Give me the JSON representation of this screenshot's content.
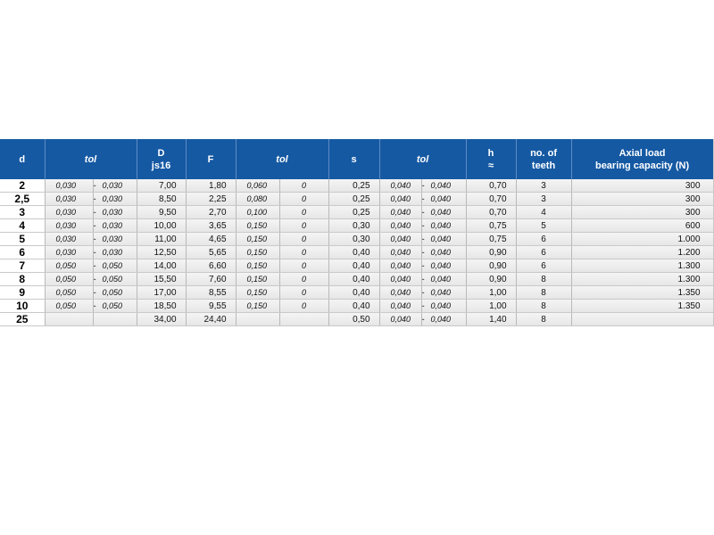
{
  "headers": {
    "d": "d",
    "tol1": "tol",
    "D_line1": "D",
    "D_line2": "js16",
    "F": "F",
    "tol2": "tol",
    "s": "s",
    "tol3": "tol",
    "h_line1": "h",
    "h_line2": "≈",
    "teeth_line1": "no. of",
    "teeth_line2": "teeth",
    "axial_line1": "Axial load",
    "axial_line2": "bearing capacity (N)"
  },
  "rows": [
    {
      "d": "2",
      "tol1a": "0,030",
      "tol1b": "0,030",
      "D": "7,00",
      "F": "1,80",
      "tol2a": "0,060",
      "tol2b": "0",
      "s": "0,25",
      "tol3a": "0,040",
      "tol3b": "0,040",
      "h": "0,70",
      "teeth": "3",
      "axial": "300"
    },
    {
      "d": "2,5",
      "tol1a": "0,030",
      "tol1b": "0,030",
      "D": "8,50",
      "F": "2,25",
      "tol2a": "0,080",
      "tol2b": "0",
      "s": "0,25",
      "tol3a": "0,040",
      "tol3b": "0,040",
      "h": "0,70",
      "teeth": "3",
      "axial": "300"
    },
    {
      "d": "3",
      "tol1a": "0,030",
      "tol1b": "0,030",
      "D": "9,50",
      "F": "2,70",
      "tol2a": "0,100",
      "tol2b": "0",
      "s": "0,25",
      "tol3a": "0,040",
      "tol3b": "0,040",
      "h": "0,70",
      "teeth": "4",
      "axial": "300"
    },
    {
      "d": "4",
      "tol1a": "0,030",
      "tol1b": "0,030",
      "D": "10,00",
      "F": "3,65",
      "tol2a": "0,150",
      "tol2b": "0",
      "s": "0,30",
      "tol3a": "0,040",
      "tol3b": "0,040",
      "h": "0,75",
      "teeth": "5",
      "axial": "600"
    },
    {
      "d": "5",
      "tol1a": "0,030",
      "tol1b": "0,030",
      "D": "11,00",
      "F": "4,65",
      "tol2a": "0,150",
      "tol2b": "0",
      "s": "0,30",
      "tol3a": "0,040",
      "tol3b": "0,040",
      "h": "0,75",
      "teeth": "6",
      "axial": "1.000"
    },
    {
      "d": "6",
      "tol1a": "0,030",
      "tol1b": "0,030",
      "D": "12,50",
      "F": "5,65",
      "tol2a": "0,150",
      "tol2b": "0",
      "s": "0,40",
      "tol3a": "0,040",
      "tol3b": "0,040",
      "h": "0,90",
      "teeth": "6",
      "axial": "1.200"
    },
    {
      "d": "7",
      "tol1a": "0,050",
      "tol1b": "0,050",
      "D": "14,00",
      "F": "6,60",
      "tol2a": "0,150",
      "tol2b": "0",
      "s": "0,40",
      "tol3a": "0,040",
      "tol3b": "0,040",
      "h": "0,90",
      "teeth": "6",
      "axial": "1.300"
    },
    {
      "d": "8",
      "tol1a": "0,050",
      "tol1b": "0,050",
      "D": "15,50",
      "F": "7,60",
      "tol2a": "0,150",
      "tol2b": "0",
      "s": "0,40",
      "tol3a": "0,040",
      "tol3b": "0,040",
      "h": "0,90",
      "teeth": "8",
      "axial": "1.300"
    },
    {
      "d": "9",
      "tol1a": "0,050",
      "tol1b": "0,050",
      "D": "17,00",
      "F": "8,55",
      "tol2a": "0,150",
      "tol2b": "0",
      "s": "0,40",
      "tol3a": "0,040",
      "tol3b": "0,040",
      "h": "1,00",
      "teeth": "8",
      "axial": "1.350"
    },
    {
      "d": "10",
      "tol1a": "0,050",
      "tol1b": "0,050",
      "D": "18,50",
      "F": "9,55",
      "tol2a": "0,150",
      "tol2b": "0",
      "s": "0,40",
      "tol3a": "0,040",
      "tol3b": "0,040",
      "h": "1,00",
      "teeth": "8",
      "axial": "1.350"
    },
    {
      "d": "25",
      "tol1a": "",
      "tol1b": "",
      "D": "34,00",
      "F": "24,40",
      "tol2a": "",
      "tol2b": "",
      "s": "0,50",
      "tol3a": "0,040",
      "tol3b": "0,040",
      "h": "1,40",
      "teeth": "8",
      "axial": ""
    }
  ],
  "dash": "-",
  "colors": {
    "header_bg": "#1559a3",
    "header_text": "#ffffff"
  }
}
